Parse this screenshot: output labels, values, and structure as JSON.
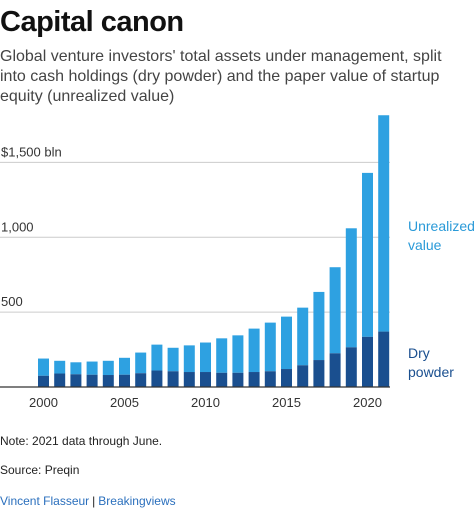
{
  "title": "Capital canon",
  "subtitle": "Global venture investors' total assets under management, split into cash holdings (dry powder) and the paper value of startup equity (unrealized value)",
  "note": "Note: 2021 data through June.",
  "source": "Source: Preqin",
  "credit": {
    "author": "Vincent Flasseur",
    "separator": "|",
    "outlet": "Breakingviews"
  },
  "colors": {
    "unrealized": "#2ea1e1",
    "dry_powder": "#1a4f8f",
    "gridline": "#cccccc",
    "axis": "#333333",
    "unrealized_label": "#2a9ad8",
    "dry_label": "#1a4f8f"
  },
  "chart_data": {
    "type": "bar",
    "stacked": true,
    "x": [
      2000,
      2001,
      2002,
      2003,
      2004,
      2005,
      2006,
      2007,
      2008,
      2009,
      2010,
      2011,
      2012,
      2013,
      2014,
      2015,
      2016,
      2017,
      2018,
      2019,
      2020,
      2021
    ],
    "series": [
      {
        "name": "Dry powder",
        "color": "#1a4f8f",
        "values": [
          75,
          90,
          85,
          82,
          80,
          82,
          92,
          110,
          105,
          100,
          100,
          95,
          95,
          100,
          105,
          120,
          145,
          180,
          225,
          265,
          335,
          370
        ]
      },
      {
        "name": "Unrealized value",
        "color": "#2ea1e1",
        "values": [
          115,
          85,
          80,
          88,
          95,
          113,
          138,
          173,
          157,
          178,
          197,
          230,
          250,
          290,
          325,
          350,
          385,
          455,
          575,
          795,
          1095,
          1445
        ]
      }
    ],
    "y_ticks": [
      {
        "value": 500,
        "label": "500"
      },
      {
        "value": 1000,
        "label": "1,000"
      },
      {
        "value": 1500,
        "label": "$1,500 bln"
      }
    ],
    "x_ticks": [
      2000,
      2005,
      2010,
      2015,
      2020
    ],
    "ylim": [
      0,
      1850
    ],
    "grid": true,
    "legend_labels": {
      "unrealized": [
        "Unrealized",
        "value"
      ],
      "dry_powder": [
        "Dry",
        "powder"
      ]
    }
  }
}
